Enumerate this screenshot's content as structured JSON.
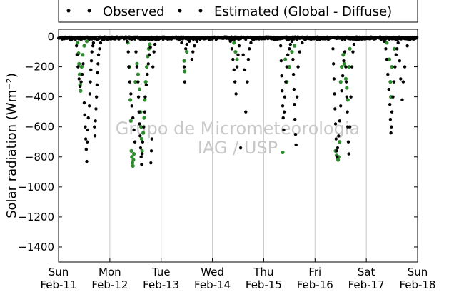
{
  "chart_data": {
    "type": "scatter",
    "title": "",
    "xlabel": "",
    "ylabel": "Solar radiation (Wm⁻²)",
    "ylim": [
      -1500,
      50
    ],
    "xlim": [
      0,
      7
    ],
    "yticks": [
      0,
      -200,
      -400,
      -600,
      -800,
      -1000,
      -1200,
      -1400
    ],
    "x_unit": "days since Sun Feb-11",
    "xticks": [
      {
        "x": 0,
        "day": "Sun",
        "date": "Feb-11"
      },
      {
        "x": 1,
        "day": "Mon",
        "date": "Feb-12"
      },
      {
        "x": 2,
        "day": "Tue",
        "date": "Feb-13"
      },
      {
        "x": 3,
        "day": "Wed",
        "date": "Feb-14"
      },
      {
        "x": 4,
        "day": "Thu",
        "date": "Feb-15"
      },
      {
        "x": 5,
        "day": "Fri",
        "date": "Feb-16"
      },
      {
        "x": 6,
        "day": "Sat",
        "date": "Feb-17"
      },
      {
        "x": 7,
        "day": "Sun",
        "date": "Feb-18"
      }
    ],
    "grid": "vertical",
    "legend_position": "top",
    "watermark": [
      "Grupo de Micrometeorologia",
      "IAG / USP"
    ],
    "series": [
      {
        "name": "Observed",
        "color": "#2e8b2e",
        "points": [
          [
            0.37,
            -40
          ],
          [
            0.39,
            -110
          ],
          [
            0.4,
            -180
          ],
          [
            0.41,
            -250
          ],
          [
            0.42,
            -320
          ],
          [
            0.43,
            -360
          ],
          [
            0.45,
            -200
          ],
          [
            0.47,
            -120
          ],
          [
            0.5,
            -60
          ],
          [
            0.55,
            -30
          ],
          [
            1.35,
            -40
          ],
          [
            1.38,
            -200
          ],
          [
            1.4,
            -420
          ],
          [
            1.41,
            -560
          ],
          [
            1.42,
            -760
          ],
          [
            1.43,
            -800
          ],
          [
            1.44,
            -840
          ],
          [
            1.45,
            -860
          ],
          [
            1.46,
            -820
          ],
          [
            1.47,
            -780
          ],
          [
            1.5,
            -300
          ],
          [
            1.53,
            -180
          ],
          [
            1.55,
            -250
          ],
          [
            1.58,
            -350
          ],
          [
            1.6,
            -500
          ],
          [
            1.61,
            -600
          ],
          [
            1.62,
            -680
          ],
          [
            1.63,
            -760
          ],
          [
            1.65,
            -640
          ],
          [
            1.67,
            -540
          ],
          [
            1.68,
            -420
          ],
          [
            1.7,
            -300
          ],
          [
            1.72,
            -200
          ],
          [
            1.74,
            -130
          ],
          [
            1.76,
            -80
          ],
          [
            1.78,
            -50
          ],
          [
            2.45,
            -160
          ],
          [
            2.46,
            -230
          ],
          [
            2.5,
            -100
          ],
          [
            3.42,
            -40
          ],
          [
            3.45,
            -100
          ],
          [
            3.48,
            -150
          ],
          [
            4.37,
            -770
          ],
          [
            4.42,
            -150
          ],
          [
            4.45,
            -300
          ],
          [
            4.5,
            -200
          ],
          [
            4.55,
            -100
          ],
          [
            4.6,
            -60
          ],
          [
            5.4,
            -760
          ],
          [
            5.42,
            -790
          ],
          [
            5.44,
            -810
          ],
          [
            5.45,
            -820
          ],
          [
            5.46,
            -800
          ],
          [
            5.48,
            -700
          ],
          [
            5.5,
            -300
          ],
          [
            5.52,
            -200
          ],
          [
            5.55,
            -120
          ],
          [
            5.57,
            -180
          ],
          [
            5.6,
            -280
          ],
          [
            5.62,
            -340
          ],
          [
            5.64,
            -420
          ],
          [
            5.66,
            -200
          ],
          [
            5.68,
            -80
          ],
          [
            6.4,
            -40
          ],
          [
            6.45,
            -150
          ],
          [
            6.47,
            -300
          ],
          [
            6.48,
            -400
          ],
          [
            6.5,
            -200
          ],
          [
            6.55,
            -80
          ]
        ]
      },
      {
        "name": "Estimated (Global - Diffuse)",
        "color": "#000000",
        "points": [
          [
            0.05,
            -5
          ],
          [
            0.1,
            -3
          ],
          [
            0.15,
            -6
          ],
          [
            0.2,
            -4
          ],
          [
            0.25,
            -2
          ],
          [
            0.3,
            -10
          ],
          [
            0.35,
            -60
          ],
          [
            0.36,
            -120
          ],
          [
            0.38,
            -200
          ],
          [
            0.4,
            -280
          ],
          [
            0.42,
            -330
          ],
          [
            0.44,
            -300
          ],
          [
            0.46,
            -250
          ],
          [
            0.48,
            -180
          ],
          [
            0.5,
            -440
          ],
          [
            0.51,
            -520
          ],
          [
            0.52,
            -600
          ],
          [
            0.53,
            -680
          ],
          [
            0.54,
            -750
          ],
          [
            0.55,
            -830
          ],
          [
            0.56,
            -700
          ],
          [
            0.57,
            -620
          ],
          [
            0.58,
            -540
          ],
          [
            0.6,
            -460
          ],
          [
            0.61,
            -380
          ],
          [
            0.62,
            -300
          ],
          [
            0.63,
            -220
          ],
          [
            0.64,
            -160
          ],
          [
            0.65,
            -100
          ],
          [
            0.67,
            -60
          ],
          [
            0.68,
            -40
          ],
          [
            0.7,
            -600
          ],
          [
            0.71,
            -660
          ],
          [
            0.72,
            -560
          ],
          [
            0.73,
            -480
          ],
          [
            0.74,
            -400
          ],
          [
            0.75,
            -320
          ],
          [
            0.76,
            -240
          ],
          [
            0.77,
            -180
          ],
          [
            0.78,
            -120
          ],
          [
            0.8,
            -80
          ],
          [
            0.82,
            -40
          ],
          [
            0.85,
            -20
          ],
          [
            0.9,
            -5
          ],
          [
            0.95,
            -4
          ],
          [
            1.0,
            -3
          ],
          [
            1.1,
            -6
          ],
          [
            1.2,
            -4
          ],
          [
            1.3,
            -5
          ],
          [
            1.34,
            -30
          ],
          [
            1.36,
            -100
          ],
          [
            1.37,
            -200
          ],
          [
            1.39,
            -300
          ],
          [
            1.41,
            -380
          ],
          [
            1.43,
            -460
          ],
          [
            1.45,
            -540
          ],
          [
            1.47,
            -620
          ],
          [
            1.49,
            -700
          ],
          [
            1.51,
            -100
          ],
          [
            1.53,
            -200
          ],
          [
            1.55,
            -300
          ],
          [
            1.56,
            -400
          ],
          [
            1.57,
            -500
          ],
          [
            1.58,
            -580
          ],
          [
            1.59,
            -660
          ],
          [
            1.6,
            -740
          ],
          [
            1.61,
            -800
          ],
          [
            1.62,
            -850
          ],
          [
            1.63,
            -780
          ],
          [
            1.64,
            -700
          ],
          [
            1.66,
            -600
          ],
          [
            1.68,
            -500
          ],
          [
            1.69,
            -400
          ],
          [
            1.71,
            -320
          ],
          [
            1.73,
            -250
          ],
          [
            1.75,
            -180
          ],
          [
            1.77,
            -120
          ],
          [
            1.79,
            -70
          ],
          [
            1.8,
            -840
          ],
          [
            1.81,
            -760
          ],
          [
            1.82,
            -680
          ],
          [
            1.84,
            -200
          ],
          [
            1.86,
            -100
          ],
          [
            1.88,
            -50
          ],
          [
            1.9,
            -20
          ],
          [
            2.0,
            -4
          ],
          [
            2.1,
            -5
          ],
          [
            2.2,
            -3
          ],
          [
            2.3,
            -6
          ],
          [
            2.35,
            -20
          ],
          [
            2.4,
            -40
          ],
          [
            2.45,
            -200
          ],
          [
            2.46,
            -300
          ],
          [
            2.48,
            -80
          ],
          [
            2.5,
            -50
          ],
          [
            2.55,
            -30
          ],
          [
            2.6,
            -150
          ],
          [
            2.62,
            -100
          ],
          [
            2.65,
            -60
          ],
          [
            2.7,
            -30
          ],
          [
            2.8,
            -10
          ],
          [
            2.9,
            -5
          ],
          [
            3.0,
            -4
          ],
          [
            3.1,
            -5
          ],
          [
            3.2,
            -3
          ],
          [
            3.3,
            -6
          ],
          [
            3.35,
            -30
          ],
          [
            3.38,
            -80
          ],
          [
            3.4,
            -150
          ],
          [
            3.42,
            -220
          ],
          [
            3.44,
            -300
          ],
          [
            3.46,
            -380
          ],
          [
            3.48,
            -200
          ],
          [
            3.5,
            -120
          ],
          [
            3.52,
            -60
          ],
          [
            3.55,
            -740
          ],
          [
            3.6,
            -120
          ],
          [
            3.62,
            -220
          ],
          [
            3.65,
            -500
          ],
          [
            3.68,
            -300
          ],
          [
            3.7,
            -150
          ],
          [
            3.72,
            -80
          ],
          [
            3.75,
            -40
          ],
          [
            3.8,
            -20
          ],
          [
            3.9,
            -5
          ],
          [
            4.0,
            -4
          ],
          [
            4.1,
            -6
          ],
          [
            4.2,
            -3
          ],
          [
            4.3,
            -10
          ],
          [
            4.33,
            -60
          ],
          [
            4.34,
            -160
          ],
          [
            4.35,
            -260
          ],
          [
            4.36,
            -360
          ],
          [
            4.37,
            -460
          ],
          [
            4.38,
            -540
          ],
          [
            4.39,
            -620
          ],
          [
            4.4,
            -500
          ],
          [
            4.41,
            -400
          ],
          [
            4.43,
            -300
          ],
          [
            4.45,
            -200
          ],
          [
            4.47,
            -120
          ],
          [
            4.5,
            -80
          ],
          [
            4.52,
            -50
          ],
          [
            4.55,
            -30
          ],
          [
            4.57,
            -150
          ],
          [
            4.58,
            -250
          ],
          [
            4.59,
            -350
          ],
          [
            4.6,
            -450
          ],
          [
            4.61,
            -550
          ],
          [
            4.62,
            -650
          ],
          [
            4.63,
            -720
          ],
          [
            4.65,
            -400
          ],
          [
            4.67,
            -200
          ],
          [
            4.7,
            -100
          ],
          [
            4.75,
            -40
          ],
          [
            4.8,
            -15
          ],
          [
            4.9,
            -5
          ],
          [
            5.0,
            -4
          ],
          [
            5.1,
            -3
          ],
          [
            5.2,
            -6
          ],
          [
            5.3,
            -10
          ],
          [
            5.35,
            -80
          ],
          [
            5.36,
            -180
          ],
          [
            5.37,
            -280
          ],
          [
            5.38,
            -380
          ],
          [
            5.39,
            -480
          ],
          [
            5.4,
            -580
          ],
          [
            5.41,
            -680
          ],
          [
            5.42,
            -760
          ],
          [
            5.43,
            -800
          ],
          [
            5.44,
            -740
          ],
          [
            5.46,
            -660
          ],
          [
            5.48,
            -560
          ],
          [
            5.5,
            -460
          ],
          [
            5.52,
            -360
          ],
          [
            5.54,
            -260
          ],
          [
            5.56,
            -160
          ],
          [
            5.58,
            -100
          ],
          [
            5.6,
            -200
          ],
          [
            5.61,
            -300
          ],
          [
            5.62,
            -400
          ],
          [
            5.63,
            -500
          ],
          [
            5.64,
            -600
          ],
          [
            5.65,
            -700
          ],
          [
            5.66,
            -780
          ],
          [
            5.68,
            -600
          ],
          [
            5.7,
            -400
          ],
          [
            5.72,
            -200
          ],
          [
            5.74,
            -100
          ],
          [
            5.76,
            -50
          ],
          [
            5.8,
            -20
          ],
          [
            5.9,
            -5
          ],
          [
            6.0,
            -4
          ],
          [
            6.1,
            -6
          ],
          [
            6.2,
            -3
          ],
          [
            6.3,
            -8
          ],
          [
            6.35,
            -30
          ],
          [
            6.38,
            -80
          ],
          [
            6.4,
            -150
          ],
          [
            6.42,
            -250
          ],
          [
            6.44,
            -350
          ],
          [
            6.46,
            -450
          ],
          [
            6.47,
            -550
          ],
          [
            6.48,
            -640
          ],
          [
            6.49,
            -600
          ],
          [
            6.5,
            -500
          ],
          [
            6.52,
            -400
          ],
          [
            6.54,
            -300
          ],
          [
            6.56,
            -200
          ],
          [
            6.58,
            -120
          ],
          [
            6.6,
            -80
          ],
          [
            6.62,
            -40
          ],
          [
            6.65,
            -160
          ],
          [
            6.67,
            -280
          ],
          [
            6.7,
            -420
          ],
          [
            6.72,
            -300
          ],
          [
            6.75,
            -200
          ],
          [
            6.8,
            -60
          ],
          [
            6.85,
            -20
          ],
          [
            6.9,
            -10
          ],
          [
            6.95,
            -5
          ]
        ]
      }
    ]
  }
}
